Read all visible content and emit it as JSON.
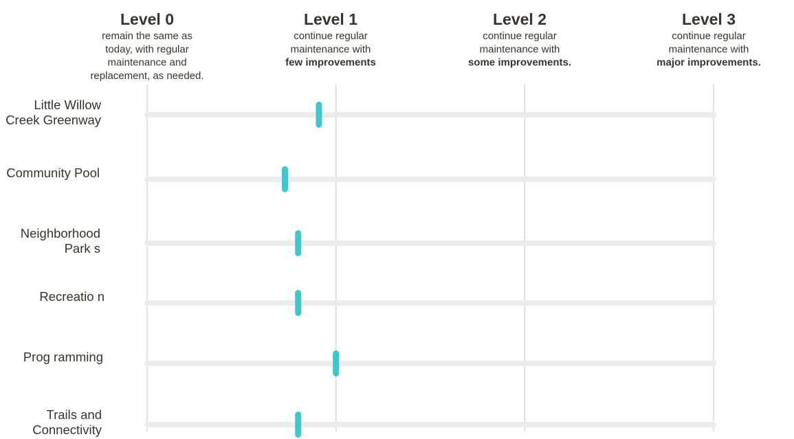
{
  "chart_data": {
    "type": "scatter",
    "levels": [
      {
        "title": "Level 0",
        "desc": [
          "remain the same as",
          "today, with regular",
          "maintenance and",
          "replacement, as needed."
        ],
        "bold_line": ""
      },
      {
        "title": "Level 1",
        "desc": [
          "continue regular",
          "maintenance with"
        ],
        "bold_line": "few improvements"
      },
      {
        "title": "Level 2",
        "desc": [
          "continue regular",
          "maintenance with"
        ],
        "bold_line": "some improvements."
      },
      {
        "title": "Level 3",
        "desc": [
          "continue regular",
          "maintenance with"
        ],
        "bold_line": "major improvements."
      }
    ],
    "categories": [
      [
        "Little Willow",
        "Creek Greenway"
      ],
      [
        "Community Pool"
      ],
      [
        "Neighborhood",
        "Park s"
      ],
      [
        "Recreatio n"
      ],
      [
        "Prog ramming"
      ],
      [
        "Trails and",
        "Connectivity"
      ]
    ],
    "values": [
      0.91,
      0.73,
      0.8,
      0.8,
      1.0,
      0.8
    ],
    "xlim": [
      0,
      3
    ],
    "grid": true,
    "colors": {
      "marker": "#3cc8cc",
      "track": "#ececec",
      "gridline": "#cfcfcf",
      "text": "#3a3331"
    }
  }
}
